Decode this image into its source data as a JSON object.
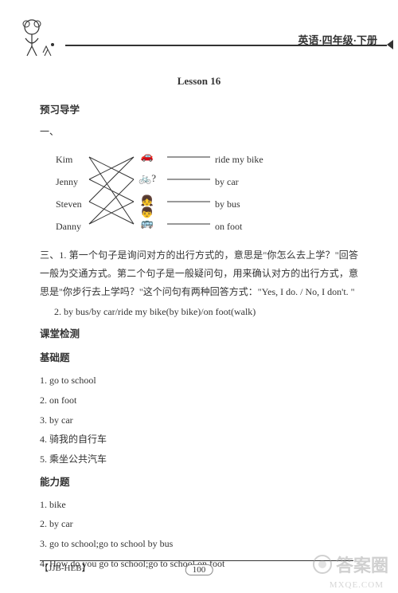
{
  "header": {
    "banner": "英语·四年级·下册"
  },
  "lesson_title": "Lesson 16",
  "preview_heading": "预习导学",
  "section_one": "一、",
  "diagram": {
    "left_labels": [
      "Kim",
      "Jenny",
      "Steven",
      "Danny"
    ],
    "right_labels": [
      "ride my bike",
      "by car",
      "by bus",
      "on foot"
    ],
    "icons": [
      "car",
      "bike-question",
      "people",
      "bus"
    ],
    "connections": [
      [
        0,
        1
      ],
      [
        0,
        3
      ],
      [
        1,
        0
      ],
      [
        1,
        2
      ],
      [
        2,
        0
      ],
      [
        2,
        3
      ],
      [
        3,
        1
      ],
      [
        3,
        2
      ]
    ],
    "line_color": "#333333"
  },
  "section_three_1": "三、1. 第一个句子是询问对方的出行方式的，意思是\"你怎么去上学？\"回答一般为交通方式。第二个句子是一般疑问句，用来确认对方的出行方式，意思是\"你步行去上学吗？\"这个问句有两种回答方式：\"Yes, I do. / No, I don't. \"",
  "section_three_2": "2. by bus/by car/ride my bike(by bike)/on foot(walk)",
  "class_test_heading": "课堂检测",
  "basic_heading": "基础题",
  "basic_items": [
    "1. go to school",
    "2. on foot",
    "3. by car",
    "4. 骑我的自行车",
    "5. 乘坐公共汽车"
  ],
  "ability_heading": "能力题",
  "ability_items": [
    "1. bike",
    "2. by car",
    "3. go to school;go to school by bus",
    "4. How do you go to school;go to school on foot"
  ],
  "footer": {
    "left": "【JJB-HEB】",
    "page": "100",
    "right": ""
  },
  "watermark": {
    "main": "答案圈",
    "sub": "MXQE.COM"
  }
}
